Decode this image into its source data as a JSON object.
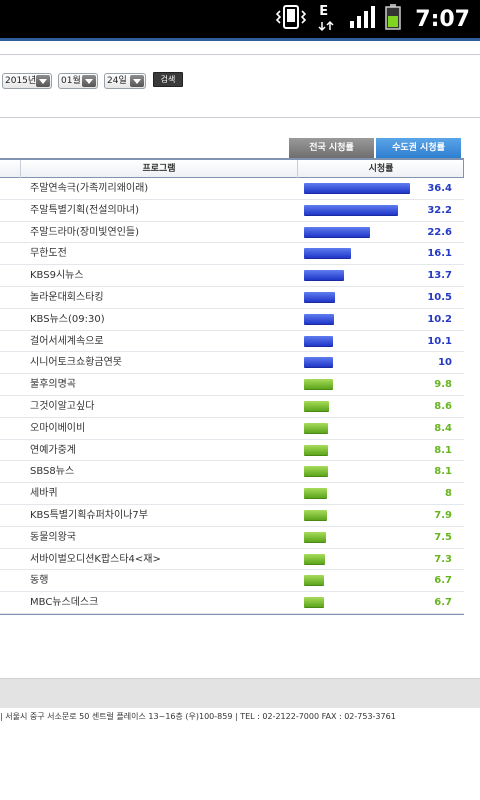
{
  "status_bar": {
    "time": "7:07",
    "icons": [
      "vibrate-icon",
      "edge-data-icon",
      "signal-icon",
      "battery-icon"
    ],
    "network_label": "E"
  },
  "filters": {
    "year": "2015년",
    "month": "01월",
    "day": "24일",
    "search_label": "검색"
  },
  "tabs": [
    {
      "label": "전국 시청률",
      "active": false
    },
    {
      "label": "수도권 시청률",
      "active": true
    }
  ],
  "table": {
    "headers": {
      "program": "프로그램",
      "rating": "시청률"
    },
    "max_rating": 36.4,
    "rows": [
      {
        "program": "주말연속극(가족끼리왜이래)",
        "rating": "36.4",
        "color": "blue"
      },
      {
        "program": "주말특별기획(전설의마녀)",
        "rating": "32.2",
        "color": "blue"
      },
      {
        "program": "주말드라마(장미빛연인들)",
        "rating": "22.6",
        "color": "blue"
      },
      {
        "program": "무한도전",
        "rating": "16.1",
        "color": "blue"
      },
      {
        "program": "KBS9시뉴스",
        "rating": "13.7",
        "color": "blue"
      },
      {
        "program": "놀라운대회스타킹",
        "rating": "10.5",
        "color": "blue"
      },
      {
        "program": "KBS뉴스(09:30)",
        "rating": "10.2",
        "color": "blue"
      },
      {
        "program": "걸어서세계속으로",
        "rating": "10.1",
        "color": "blue"
      },
      {
        "program": "시니어토크쇼황금연못",
        "rating": "10",
        "color": "blue"
      },
      {
        "program": "불후의명곡",
        "rating": "9.8",
        "color": "green"
      },
      {
        "program": "그것이알고싶다",
        "rating": "8.6",
        "color": "green"
      },
      {
        "program": "오마이베이비",
        "rating": "8.4",
        "color": "green"
      },
      {
        "program": "연예가중계",
        "rating": "8.1",
        "color": "green"
      },
      {
        "program": "SBS8뉴스",
        "rating": "8.1",
        "color": "green"
      },
      {
        "program": "세바퀴",
        "rating": "8",
        "color": "green"
      },
      {
        "program": "KBS특별기획슈퍼차이나7부",
        "rating": "7.9",
        "color": "green"
      },
      {
        "program": "동물의왕국",
        "rating": "7.5",
        "color": "green"
      },
      {
        "program": "서바이벌오디션K팝스타4<재>",
        "rating": "7.3",
        "color": "green"
      },
      {
        "program": "동행",
        "rating": "6.7",
        "color": "green"
      },
      {
        "program": "MBC뉴스데스크",
        "rating": "6.7",
        "color": "green"
      }
    ]
  },
  "footer": {
    "text": "|  서울시 중구 서소문로 50 센트럴 플레이스 13~16층 (우)100-859     |  TEL :  02-2122-7000    FAX : 02-753-3761"
  },
  "colors": {
    "blue_bar": "#2136c8",
    "green_bar": "#5ca51c",
    "active_tab": "#2f7fd0",
    "inactive_tab": "#6e6e6e"
  }
}
